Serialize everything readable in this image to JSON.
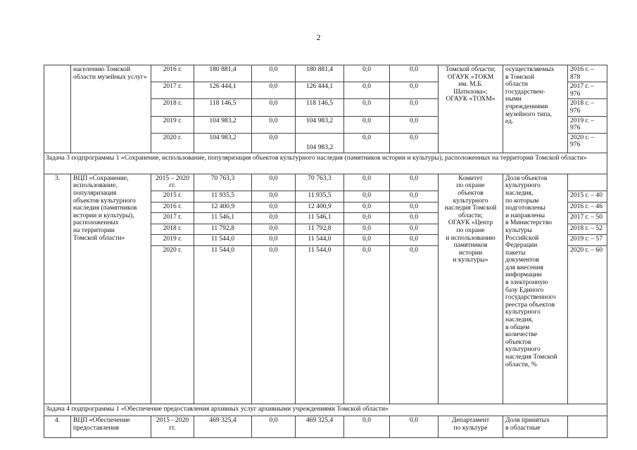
{
  "page_number": "2",
  "block1": {
    "number": "",
    "name": "населению Томской области музейных услуг»",
    "rows": [
      {
        "year": "2016 г.",
        "total": "180 881,4",
        "c1": "0,0",
        "c2": "180 881,4",
        "c3": "0,0",
        "c4": "0,0",
        "value": "2016 г. – 878"
      },
      {
        "year": "2017 г.",
        "total": "126 444,1",
        "c1": "0,0",
        "c2": "126 444,1",
        "c3": "0,0",
        "c4": "0,0",
        "value": "2017 г. – 976"
      },
      {
        "year": "2018 г.",
        "total": "118 146,5",
        "c1": "0,0",
        "c2": "118 146,5",
        "c3": "0,0",
        "c4": "0,0",
        "value": "2018 г. – 976"
      },
      {
        "year": "2019 г.",
        "total": "104 983,2",
        "c1": "0,0",
        "c2": "104 983,2",
        "c3": "0,0",
        "c4": "0,0",
        "value": "2019 г. – 976"
      },
      {
        "year": "2020 г.",
        "total": "104 983,2",
        "c1": "0,0",
        "c2": "104 983,2",
        "c3": "0,0",
        "c4": "0,0",
        "value": "2020 г. – 976"
      }
    ],
    "executor": "Томской области;\nОГАУК «ТОКМ\nим. М.Б.\nШатилова»;\nОГАУК «ТОХМ»",
    "indicator": "осуществляемых\nв Томской\nобласти\nгосударствен-\nными\nучреждениями\nмузейного типа,\nед."
  },
  "task3": "Задача 3 подпрограммы 1 «Сохранение, использование, популяризация объектов культурного наследия (памятников истории и культуры), расположенных на территории Томской области»",
  "block3": {
    "number": "3.",
    "name": "ВЦП «Сохранение,\nиспользование,\nпопуляризация\nобъектов культурного\nнаследия (памятников\nистории и культуры),\nрасположенных\nна территории\nТомской области»",
    "rows": [
      {
        "year": "2015 – 2020 гг.",
        "total": "70 763,3",
        "c1": "0,0",
        "c2": "70 763,3",
        "c3": "0,0",
        "c4": "0,0",
        "value": ""
      },
      {
        "year": "2015 г.",
        "total": "11 935,5",
        "c1": "0,0",
        "c2": "11 935,5",
        "c3": "0,0",
        "c4": "0,0",
        "value": "2015 г. – 40"
      },
      {
        "year": "2016 г.",
        "total": "12 400,9",
        "c1": "0,0",
        "c2": "12 400,9",
        "c3": "0,0",
        "c4": "0,0",
        "value": "2016 г. – 46"
      },
      {
        "year": "2017 г.",
        "total": "11 546,1",
        "c1": "0,0",
        "c2": "11 546,1",
        "c3": "0,0",
        "c4": "0,0",
        "value": "2017 г. – 50"
      },
      {
        "year": "2018 г.",
        "total": "11 792,8",
        "c1": "0,0",
        "c2": "11 792,8",
        "c3": "0,0",
        "c4": "0,0",
        "value": "2018 г. – 52"
      },
      {
        "year": "2019 г.",
        "total": "11 544,0",
        "c1": "0,0",
        "c2": "11 544,0",
        "c3": "0,0",
        "c4": "0,0",
        "value": "2019 г. – 57"
      },
      {
        "year": "2020 г.",
        "total": "11 544,0",
        "c1": "0,0",
        "c2": "11 544,0",
        "c3": "0,0",
        "c4": "0,0",
        "value": "2020 г. – 60"
      }
    ],
    "executor": "Комитет\nпо охране\nобъектов\nкультурного\nнаследия Томской\nобласти;\nОГАУК «Центр\nпо охране\nи использованию\nпамятников\nистории\nи культуры»",
    "indicator": "Доля объектов\nкультурного\nнаследия,\nпо которым\nподготовлены\nи направлены\nв Министерство\nкультуры\nРоссийской\nФедерации\nпакеты\nдокументов\nдля внесения\nинформации\nв электронную\nбазу Единого\nгосударственного\nреестра объектов\nкультурного\nнаследия,\nв общем\nколичестве\nобъектов\nкультурного\nнаследия Томской\nобласти, %"
  },
  "task4": "Задача 4 подпрограммы 1 «Обеспечение предоставления архивных услуг архивными учреждениями Томской области»",
  "block4": {
    "number": "4.",
    "name": "ВЦП «Обеспечение\nпредоставления",
    "year": "2015 - 2020 гг.",
    "total": "469 325,4",
    "c1": "0,0",
    "c2": "469 325,4",
    "c3": "0,0",
    "c4": "0,0",
    "executor": "Департамент\nпо культуре",
    "indicator": "Доля принятых\nв областные",
    "value": ""
  }
}
